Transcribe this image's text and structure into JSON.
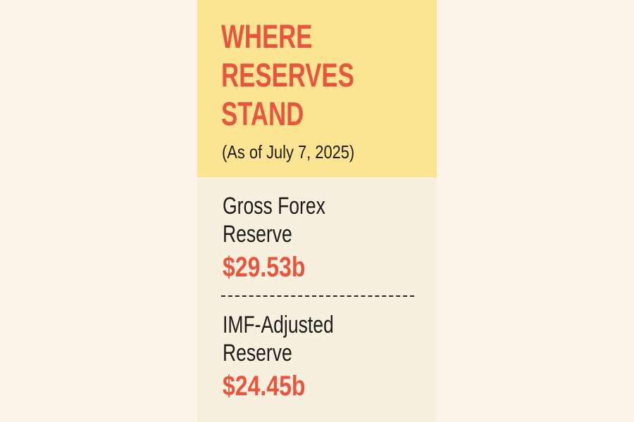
{
  "header": {
    "title_lines": [
      "WHERE",
      "RESERVES",
      "STAND"
    ],
    "subtitle": "(As of July 7, 2025)"
  },
  "items": [
    {
      "label_lines": [
        "Gross Forex",
        "Reserve"
      ],
      "value": "$29.53b"
    },
    {
      "label_lines": [
        "IMF-Adjusted",
        "Reserve"
      ],
      "value": "$24.45b"
    }
  ],
  "colors": {
    "accent": "#e8553e",
    "header_background": "#fce592",
    "card_background": "#f7f0df",
    "page_background": "#fdf3e8",
    "text": "#1c1c1c"
  }
}
